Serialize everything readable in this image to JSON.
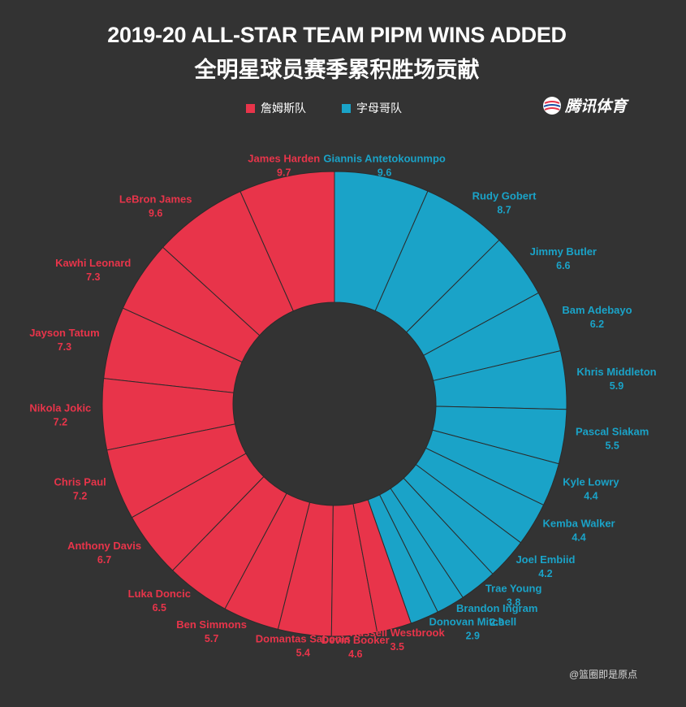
{
  "title_en": "2019-20 ALL-STAR TEAM PIPM WINS ADDED",
  "title_cn": "全明星球员赛季累积胜场贡献",
  "logo_text": "腾讯体育",
  "credit": "@篮圈即是原点",
  "colors": {
    "background": "#333333",
    "team_lebron": "#e8344a",
    "team_giannis": "#1aa3c8"
  },
  "legend": [
    {
      "label": "詹姆斯队",
      "color": "#e8344a"
    },
    {
      "label": "字母哥队",
      "color": "#1aa3c8"
    }
  ],
  "chart_data": {
    "type": "pie",
    "variant": "donut",
    "title": "2019-20 ALL-STAR TEAM PIPM WINS ADDED",
    "series": [
      {
        "name": "字母哥队",
        "color": "#1aa3c8",
        "direction": "clockwise",
        "players": [
          {
            "name": "Giannis Antetokounmpo",
            "value": 9.6
          },
          {
            "name": "Rudy Gobert",
            "value": 8.7
          },
          {
            "name": "Jimmy Butler",
            "value": 6.6
          },
          {
            "name": "Bam Adebayo",
            "value": 6.2
          },
          {
            "name": "Khris Middleton",
            "value": 5.9
          },
          {
            "name": "Pascal Siakam",
            "value": 5.5
          },
          {
            "name": "Kyle Lowry",
            "value": 4.4
          },
          {
            "name": "Kemba Walker",
            "value": 4.4
          },
          {
            "name": "Joel Embiid",
            "value": 4.2
          },
          {
            "name": "Trae Young",
            "value": 3.8
          },
          {
            "name": "Brandon Ingram",
            "value": 2.9
          },
          {
            "name": "Donovan Mitchell",
            "value": 2.9
          }
        ]
      },
      {
        "name": "詹姆斯队",
        "color": "#e8344a",
        "direction": "counterclockwise",
        "players": [
          {
            "name": "James Harden",
            "value": 9.7
          },
          {
            "name": "LeBron James",
            "value": 9.6
          },
          {
            "name": "Kawhi Leonard",
            "value": 7.3
          },
          {
            "name": "Jayson Tatum",
            "value": 7.3
          },
          {
            "name": "Nikola Jokic",
            "value": 7.2
          },
          {
            "name": "Chris Paul",
            "value": 7.2
          },
          {
            "name": "Anthony Davis",
            "value": 6.7
          },
          {
            "name": "Luka Doncic",
            "value": 6.5
          },
          {
            "name": "Ben Simmons",
            "value": 5.7
          },
          {
            "name": "Domantas Sabonis",
            "value": 5.4
          },
          {
            "name": "Devin Booker",
            "value": 4.6
          },
          {
            "name": "Russell Westbrook",
            "value": 3.5
          }
        ]
      }
    ]
  }
}
